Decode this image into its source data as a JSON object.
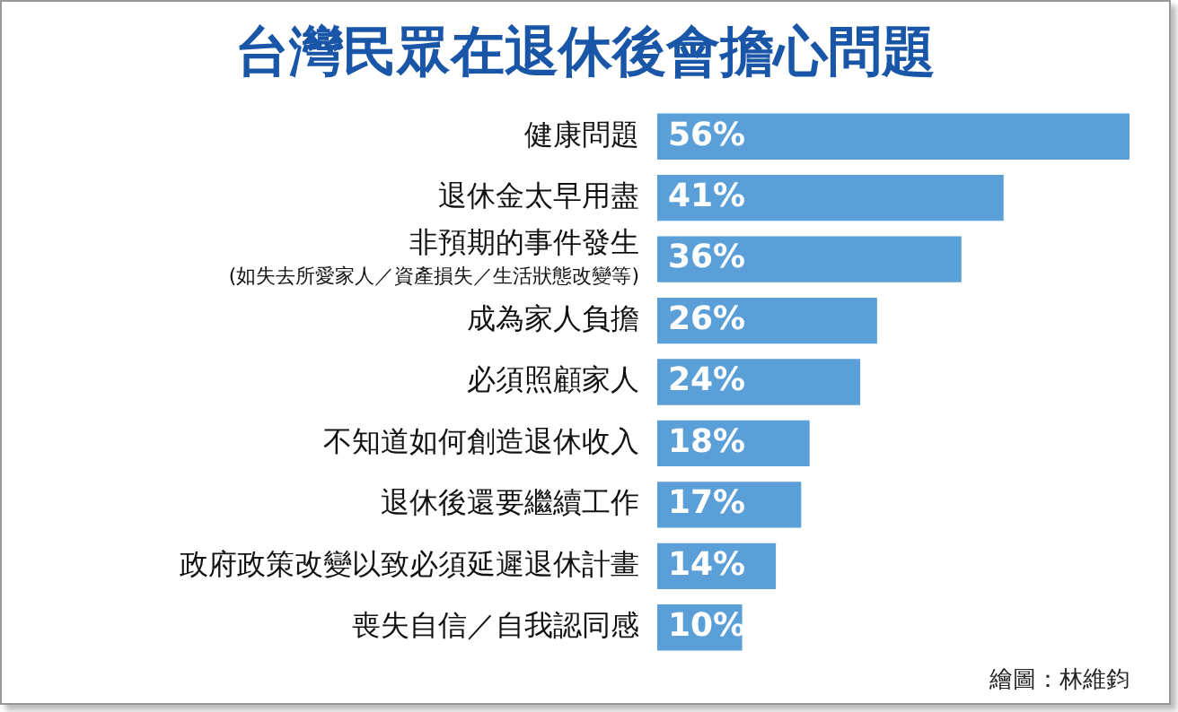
{
  "chart_data": {
    "type": "bar",
    "orientation": "horizontal",
    "title": "台灣民眾在退休後會擔心問題",
    "categories": [
      "健康問題",
      "退休金太早用盡",
      "非預期的事件發生\n(如失去所愛家人／資產損失／生活狀態改變等)",
      "成為家人負擔",
      "必須照顧家人",
      "不知道如何創造退休收入",
      "退休後還要繼續工作",
      "政府政策改變以致必須延遲退休計畫",
      "喪失自信／自我認同感"
    ],
    "values": [
      56,
      41,
      36,
      26,
      24,
      18,
      17,
      14,
      10
    ],
    "value_labels": [
      "56%",
      "41%",
      "36%",
      "26%",
      "24%",
      "18%",
      "17%",
      "14%",
      "10%"
    ],
    "color": "#5a9fd8",
    "annotations": [
      "繪圖：林維鈞"
    ]
  }
}
